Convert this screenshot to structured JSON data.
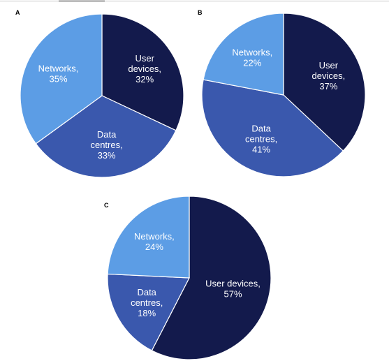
{
  "colors": {
    "user_devices": "#131a4c",
    "data_centres": "#3a58ad",
    "networks": "#5c9de5",
    "top_rule": "#c8c8c8",
    "top_rule_accent": "#9a9a9a"
  },
  "chart_data": [
    {
      "type": "pie",
      "panel": "A",
      "slices": [
        {
          "key": "user_devices",
          "label_lines": [
            "User",
            "devices,",
            "32%"
          ],
          "value": 32
        },
        {
          "key": "data_centres",
          "label_lines": [
            "Data",
            "centres,",
            "33%"
          ],
          "value": 33
        },
        {
          "key": "networks",
          "label_lines": [
            "Networks,",
            "35%"
          ],
          "value": 35
        }
      ]
    },
    {
      "type": "pie",
      "panel": "B",
      "slices": [
        {
          "key": "user_devices",
          "label_lines": [
            "User",
            "devices,",
            "37%"
          ],
          "value": 37
        },
        {
          "key": "data_centres",
          "label_lines": [
            "Data",
            "centres,",
            "41%"
          ],
          "value": 41
        },
        {
          "key": "networks",
          "label_lines": [
            "Networks,",
            "22%"
          ],
          "value": 22
        }
      ]
    },
    {
      "type": "pie",
      "panel": "C",
      "slices": [
        {
          "key": "user_devices",
          "label_lines": [
            "User devices,",
            "57%"
          ],
          "value": 57
        },
        {
          "key": "data_centres",
          "label_lines": [
            "Data",
            "centres,",
            "18%"
          ],
          "value": 18
        },
        {
          "key": "networks",
          "label_lines": [
            "Networks,",
            "24%"
          ],
          "value": 24
        }
      ]
    }
  ]
}
